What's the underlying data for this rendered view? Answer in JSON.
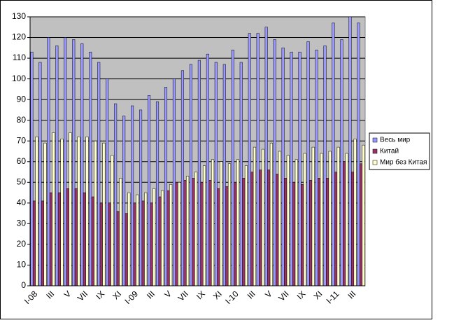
{
  "chart_data": {
    "type": "bar",
    "categories": [
      "I-08",
      null,
      "III",
      null,
      "V",
      null,
      "VII",
      null,
      "IX",
      null,
      "XI",
      null,
      "I-09",
      null,
      "III",
      null,
      "V",
      null,
      "VII",
      null,
      "IX",
      null,
      "XI",
      null,
      "I-10",
      null,
      "III",
      null,
      "V",
      null,
      "VII",
      null,
      "IX",
      null,
      "XI",
      null,
      "I-11",
      null,
      "III",
      null
    ],
    "series": [
      {
        "name": "Весь мир",
        "color": "#9999ff",
        "values": [
          113,
          108,
          120,
          116,
          120,
          119,
          117,
          113,
          108,
          100,
          88,
          82,
          87,
          85,
          92,
          89,
          96,
          100,
          104,
          107,
          109,
          112,
          108,
          107,
          114,
          108,
          122,
          122,
          125,
          119,
          115,
          113,
          113,
          118,
          114,
          116,
          127,
          119,
          130,
          127
        ]
      },
      {
        "name": "Китай",
        "color": "#993366",
        "values": [
          41,
          41,
          45,
          45,
          47,
          47,
          45,
          43,
          40,
          40,
          36,
          35,
          40,
          41,
          40,
          43,
          46,
          50,
          51,
          52,
          50,
          51,
          47,
          48,
          50,
          52,
          55,
          56,
          56,
          54,
          52,
          50,
          49,
          51,
          52,
          52,
          55,
          60,
          55,
          59
        ]
      },
      {
        "name": "Мир без Китая",
        "color": "#ffffcc",
        "values": [
          72,
          69,
          74,
          71,
          74,
          72,
          72,
          70,
          69,
          63,
          52,
          45,
          44,
          45,
          47,
          46,
          49,
          50,
          53,
          55,
          58,
          61,
          60,
          59,
          61,
          58,
          67,
          66,
          69,
          65,
          63,
          61,
          64,
          67,
          64,
          65,
          67,
          64,
          71,
          68
        ]
      }
    ],
    "ylim": [
      0,
      130
    ],
    "yticks": [
      0,
      10,
      20,
      30,
      40,
      50,
      60,
      70,
      80,
      90,
      100,
      110,
      120,
      130
    ],
    "grid": true,
    "legend": "right"
  }
}
